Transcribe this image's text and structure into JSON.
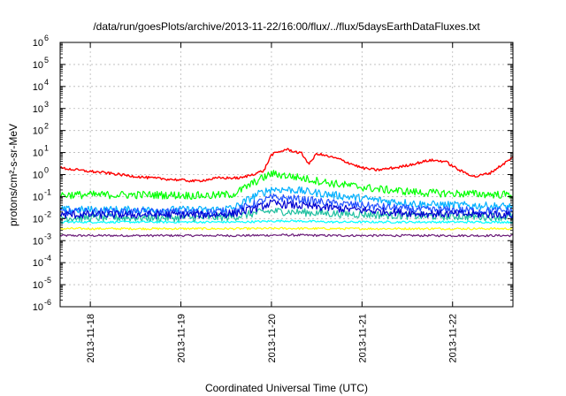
{
  "chart_data": {
    "type": "line",
    "title": "/data/run/goesPlots/archive/2013-11-22/16:00/flux/../flux/5daysEarthDataFluxes.txt",
    "xlabel": "Coordinated Universal Time (UTC)",
    "ylabel": "protons/cm²-s-sr-MeV",
    "yscale": "log",
    "ylim": [
      1e-06,
      1000000.0
    ],
    "xlim": [
      "2013-11-17T16:00",
      "2013-11-22T16:00"
    ],
    "grid": true,
    "xticks": [
      {
        "t": "2013-11-18T00:00",
        "label": "2013-11-18"
      },
      {
        "t": "2013-11-19T00:00",
        "label": "2013-11-19"
      },
      {
        "t": "2013-11-20T00:00",
        "label": "2013-11-20"
      },
      {
        "t": "2013-11-21T00:00",
        "label": "2013-11-21"
      },
      {
        "t": "2013-11-22T00:00",
        "label": "2013-11-22"
      }
    ],
    "yticks": [
      {
        "base": "10",
        "exp": "-6",
        "value": 1e-06
      },
      {
        "base": "10",
        "exp": "-5",
        "value": 1e-05
      },
      {
        "base": "10",
        "exp": "-4",
        "value": 0.0001
      },
      {
        "base": "10",
        "exp": "-3",
        "value": 0.001
      },
      {
        "base": "10",
        "exp": "-2",
        "value": 0.01
      },
      {
        "base": "10",
        "exp": "-1",
        "value": 0.1
      },
      {
        "base": "10",
        "exp": "0",
        "value": 1
      },
      {
        "base": "10",
        "exp": "1",
        "value": 10
      },
      {
        "base": "10",
        "exp": "2",
        "value": 100
      },
      {
        "base": "10",
        "exp": "3",
        "value": 1000
      },
      {
        "base": "10",
        "exp": "4",
        "value": 10000
      },
      {
        "base": "10",
        "exp": "5",
        "value": 100000
      },
      {
        "base": "10",
        "exp": "6",
        "value": 1000000
      }
    ],
    "series": [
      {
        "color": "#6a1a78",
        "x": [
          "2013-11-17T16:00",
          "2013-11-18T04:00",
          "2013-11-18T16:00",
          "2013-11-19T04:00",
          "2013-11-19T16:00",
          "2013-11-20T04:00",
          "2013-11-20T16:00",
          "2013-11-21T04:00",
          "2013-11-21T16:00",
          "2013-11-22T04:00",
          "2013-11-22T16:00"
        ],
        "y": [
          0.0017,
          0.0017,
          0.0017,
          0.0017,
          0.0017,
          0.0018,
          0.0017,
          0.0017,
          0.0017,
          0.0017,
          0.0017
        ]
      },
      {
        "color": "#ffff00",
        "x": [
          "2013-11-17T16:00",
          "2013-11-18T04:00",
          "2013-11-18T16:00",
          "2013-11-19T04:00",
          "2013-11-19T16:00",
          "2013-11-20T04:00",
          "2013-11-20T16:00",
          "2013-11-21T04:00",
          "2013-11-21T16:00",
          "2013-11-22T04:00",
          "2013-11-22T16:00"
        ],
        "y": [
          0.0035,
          0.0035,
          0.0035,
          0.0035,
          0.0035,
          0.0036,
          0.0035,
          0.0035,
          0.0035,
          0.0035,
          0.0035
        ]
      },
      {
        "color": "#00ffff",
        "x": [
          "2013-11-17T16:00",
          "2013-11-18T04:00",
          "2013-11-18T16:00",
          "2013-11-19T04:00",
          "2013-11-19T16:00",
          "2013-11-20T04:00",
          "2013-11-20T16:00",
          "2013-11-21T04:00",
          "2013-11-21T16:00",
          "2013-11-22T04:00",
          "2013-11-22T16:00"
        ],
        "y": [
          0.007,
          0.007,
          0.007,
          0.007,
          0.007,
          0.008,
          0.007,
          0.007,
          0.007,
          0.007,
          0.007
        ]
      },
      {
        "color": "#20c0a0",
        "x": [
          "2013-11-17T16:00",
          "2013-11-18T16:00",
          "2013-11-19T06:00",
          "2013-11-19T14:00",
          "2013-11-19T20:00",
          "2013-11-20T00:00",
          "2013-11-20T06:00",
          "2013-11-20T16:00",
          "2013-11-21T04:00",
          "2013-11-21T16:00",
          "2013-11-22T16:00"
        ],
        "y": [
          0.011,
          0.011,
          0.011,
          0.012,
          0.018,
          0.022,
          0.02,
          0.017,
          0.015,
          0.013,
          0.012
        ]
      },
      {
        "color": "#00b0ff",
        "x": [
          "2013-11-17T16:00",
          "2013-11-18T16:00",
          "2013-11-19T08:00",
          "2013-11-19T14:00",
          "2013-11-19T20:00",
          "2013-11-20T00:00",
          "2013-11-20T06:00",
          "2013-11-20T16:00",
          "2013-11-21T04:00",
          "2013-11-21T16:00",
          "2013-11-22T16:00"
        ],
        "y": [
          0.025,
          0.025,
          0.025,
          0.03,
          0.12,
          0.22,
          0.2,
          0.12,
          0.07,
          0.045,
          0.035
        ]
      },
      {
        "color": "#2050ff",
        "x": [
          "2013-11-17T16:00",
          "2013-11-18T16:00",
          "2013-11-19T08:00",
          "2013-11-19T14:00",
          "2013-11-19T20:00",
          "2013-11-20T00:00",
          "2013-11-20T06:00",
          "2013-11-20T16:00",
          "2013-11-21T04:00",
          "2013-11-21T16:00",
          "2013-11-22T16:00"
        ],
        "y": [
          0.02,
          0.02,
          0.02,
          0.022,
          0.05,
          0.09,
          0.08,
          0.05,
          0.035,
          0.025,
          0.022
        ]
      },
      {
        "color": "#0000d0",
        "x": [
          "2013-11-17T16:00",
          "2013-11-18T16:00",
          "2013-11-19T08:00",
          "2013-11-19T14:00",
          "2013-11-19T20:00",
          "2013-11-20T00:00",
          "2013-11-20T06:00",
          "2013-11-20T16:00",
          "2013-11-21T04:00",
          "2013-11-21T16:00",
          "2013-11-22T16:00"
        ],
        "y": [
          0.015,
          0.015,
          0.015,
          0.017,
          0.03,
          0.05,
          0.04,
          0.03,
          0.022,
          0.017,
          0.015
        ]
      },
      {
        "color": "#00ff00",
        "x": [
          "2013-11-17T16:00",
          "2013-11-18T16:00",
          "2013-11-19T08:00",
          "2013-11-19T14:00",
          "2013-11-19T20:00",
          "2013-11-20T00:00",
          "2013-11-20T06:00",
          "2013-11-20T16:00",
          "2013-11-21T04:00",
          "2013-11-21T16:00",
          "2013-11-22T16:00"
        ],
        "y": [
          0.12,
          0.12,
          0.11,
          0.13,
          0.5,
          1.1,
          0.8,
          0.4,
          0.22,
          0.15,
          0.12
        ]
      },
      {
        "color": "#ff0000",
        "x": [
          "2013-11-17T16:00",
          "2013-11-17T22:00",
          "2013-11-18T04:00",
          "2013-11-18T10:00",
          "2013-11-18T16:00",
          "2013-11-18T22:00",
          "2013-11-19T04:00",
          "2013-11-19T10:00",
          "2013-11-19T16:00",
          "2013-11-19T22:00",
          "2013-11-20T00:00",
          "2013-11-20T04:00",
          "2013-11-20T08:00",
          "2013-11-20T10:00",
          "2013-11-20T12:00",
          "2013-11-20T18:00",
          "2013-11-21T00:00",
          "2013-11-21T04:00",
          "2013-11-21T10:00",
          "2013-11-21T18:00",
          "2013-11-21T22:00",
          "2013-11-22T02:00",
          "2013-11-22T06:00",
          "2013-11-22T10:00",
          "2013-11-22T16:00"
        ],
        "y": [
          2.0,
          1.5,
          1.2,
          0.9,
          0.7,
          0.6,
          0.5,
          0.7,
          0.7,
          1.5,
          8,
          14,
          9,
          3,
          9,
          5,
          2,
          1.6,
          2.2,
          4.5,
          4,
          1.5,
          0.8,
          1.2,
          6
        ]
      }
    ]
  }
}
